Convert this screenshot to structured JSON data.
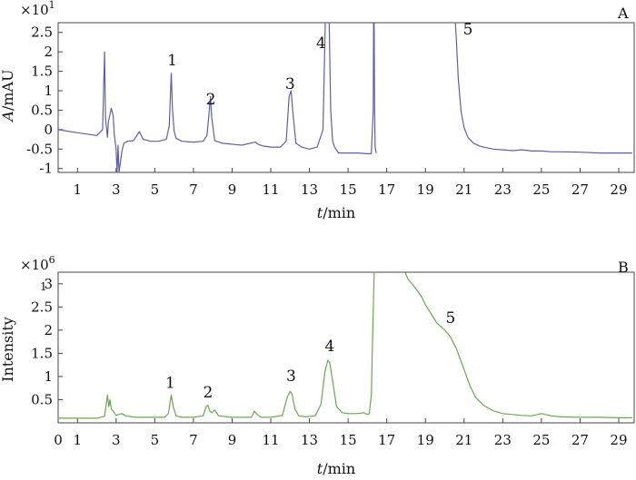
{
  "chart_data": [
    {
      "type": "line",
      "panel_label": "A",
      "scale_text": "×10",
      "scale_exp": "1",
      "xlabel_italic": "t",
      "xlabel_rest": "/min",
      "ylabel_italic": "A",
      "ylabel_rest": "/mAU",
      "xlim": [
        0,
        29.8
      ],
      "ylim": [
        -1.1,
        2.75
      ],
      "x_ticks": [
        1,
        3,
        5,
        7,
        9,
        11,
        13,
        15,
        17,
        19,
        21,
        23,
        25,
        27,
        29
      ],
      "x_tick_labels": [
        "1",
        "3",
        "5",
        "7",
        "9",
        "11",
        "13",
        "15",
        "17",
        "19",
        "21",
        "23",
        "25",
        "27",
        "29"
      ],
      "y_ticks": [
        2.5,
        2,
        1.5,
        1,
        0.5,
        0,
        -0.5,
        -1
      ],
      "y_tick_labels": [
        "2.5",
        "2",
        "1.5",
        "1",
        "0.5",
        "0",
        "-0.5",
        "-1"
      ],
      "line_color": "#5f5fa8",
      "peak_labels": [
        {
          "text": "1",
          "x": 5.9,
          "y": 1.65
        },
        {
          "text": "2",
          "x": 7.9,
          "y": 0.65
        },
        {
          "text": "3",
          "x": 12.0,
          "y": 1.05
        },
        {
          "text": "4",
          "x": 13.6,
          "y": 2.1
        },
        {
          "text": "5",
          "x": 21.2,
          "y": 2.45
        }
      ],
      "series": [
        {
          "x": [
            0,
            1,
            2,
            2.3,
            2.4,
            2.45,
            2.55,
            2.6,
            2.75,
            2.85,
            2.9,
            3.0,
            3.05,
            3.1,
            3.15,
            3.3,
            3.4,
            3.6,
            3.9,
            4.2,
            4.3,
            4.4,
            4.8,
            5.2,
            5.6,
            5.75,
            5.85,
            5.92,
            6.0,
            6.1,
            6.4,
            7.0,
            7.5,
            7.7,
            7.82,
            7.88,
            7.95,
            8.1,
            8.5,
            9.5,
            10.2,
            10.35,
            10.6,
            11.0,
            11.5,
            11.8,
            11.95,
            12.05,
            12.15,
            12.3,
            12.6,
            13.0,
            13.4,
            13.7,
            13.82,
            13.88,
            13.92,
            14.02,
            14.1,
            14.2,
            14.3,
            14.5,
            15.0,
            15.5,
            16.0,
            16.2,
            16.3,
            16.32,
            16.35,
            16.37,
            16.4,
            16.45
          ],
          "y": [
            0.0,
            -0.08,
            -0.15,
            0.0,
            2.0,
            0.3,
            -0.2,
            0.2,
            0.55,
            0.35,
            -0.1,
            -0.5,
            -1.1,
            -0.4,
            -1.1,
            -0.55,
            -0.35,
            -0.3,
            -0.28,
            -0.05,
            -0.15,
            -0.25,
            -0.3,
            -0.3,
            -0.25,
            0.1,
            1.45,
            0.5,
            -0.05,
            -0.22,
            -0.3,
            -0.32,
            -0.3,
            -0.15,
            0.5,
            0.85,
            0.3,
            -0.28,
            -0.35,
            -0.4,
            -0.32,
            -0.38,
            -0.42,
            -0.45,
            -0.45,
            -0.3,
            0.85,
            1.0,
            0.4,
            -0.35,
            -0.45,
            -0.5,
            -0.45,
            0.0,
            2.75,
            2.75,
            2.75,
            2.75,
            0.5,
            -0.3,
            -0.45,
            -0.6,
            -0.6,
            -0.6,
            -0.62,
            -0.62,
            0.5,
            2.75,
            2.75,
            0.5,
            -0.45,
            -0.6
          ]
        },
        {
          "x": [
            20.55,
            20.6,
            20.7,
            20.85,
            21.0,
            21.2,
            21.5,
            21.8,
            22.0,
            22.5,
            23.0,
            23.5,
            24.0,
            24.5,
            25.0,
            25.5,
            26.0,
            27.0,
            28.0,
            29.0,
            29.7
          ],
          "y": [
            2.75,
            2.3,
            1.3,
            0.45,
            0.05,
            -0.2,
            -0.35,
            -0.42,
            -0.45,
            -0.5,
            -0.52,
            -0.54,
            -0.52,
            -0.55,
            -0.55,
            -0.57,
            -0.57,
            -0.58,
            -0.6,
            -0.6,
            -0.6
          ]
        }
      ]
    },
    {
      "type": "line",
      "panel_label": "B",
      "scale_text": "×10",
      "scale_exp": "6",
      "stray_label": "1",
      "xlabel_italic": "t",
      "xlabel_rest": "/min",
      "ylabel": "Intensity",
      "xlim": [
        0,
        29.8
      ],
      "ylim": [
        0,
        3.25
      ],
      "x_ticks": [
        0,
        1,
        3,
        5,
        7,
        9,
        11,
        13,
        15,
        17,
        19,
        21,
        23,
        25,
        27,
        29
      ],
      "x_tick_labels": [
        "0",
        "1",
        "3",
        "5",
        "7",
        "9",
        "11",
        "13",
        "15",
        "17",
        "19",
        "21",
        "23",
        "25",
        "27",
        "29"
      ],
      "y_ticks": [
        3,
        2.5,
        2,
        1.5,
        1,
        0.5
      ],
      "y_tick_labels": [
        "3",
        "2.5",
        "2",
        "1.5",
        "1",
        "0.5"
      ],
      "line_color": "#6aa84f",
      "peak_labels": [
        {
          "text": "1",
          "x": 5.8,
          "y": 0.75
        },
        {
          "text": "2",
          "x": 7.75,
          "y": 0.55
        },
        {
          "text": "3",
          "x": 12.05,
          "y": 0.9
        },
        {
          "text": "4",
          "x": 14.05,
          "y": 1.55
        },
        {
          "text": "5",
          "x": 20.3,
          "y": 2.15
        }
      ],
      "series": [
        {
          "x": [
            0,
            1,
            2,
            2.4,
            2.55,
            2.62,
            2.68,
            2.75,
            2.85,
            3.0,
            3.3,
            3.5,
            4.0,
            5.0,
            5.5,
            5.7,
            5.85,
            5.95,
            6.1,
            6.4,
            7.0,
            7.5,
            7.65,
            7.75,
            7.85,
            7.95,
            8.1,
            8.3,
            9.0,
            10.0,
            10.15,
            10.3,
            10.5,
            11.0,
            11.6,
            11.85,
            12.0,
            12.1,
            12.25,
            12.45,
            12.8,
            13.3,
            13.6,
            13.8,
            13.95,
            14.05,
            14.2,
            14.4,
            14.7,
            15.0,
            15.5,
            15.8,
            16.0,
            16.1,
            16.2,
            16.25,
            16.3,
            16.35,
            16.4
          ],
          "y": [
            0.1,
            0.1,
            0.1,
            0.14,
            0.6,
            0.35,
            0.5,
            0.3,
            0.25,
            0.16,
            0.2,
            0.15,
            0.12,
            0.12,
            0.12,
            0.2,
            0.6,
            0.35,
            0.15,
            0.12,
            0.12,
            0.15,
            0.35,
            0.38,
            0.25,
            0.22,
            0.28,
            0.15,
            0.12,
            0.12,
            0.25,
            0.18,
            0.12,
            0.12,
            0.16,
            0.55,
            0.68,
            0.62,
            0.3,
            0.15,
            0.13,
            0.15,
            0.4,
            1.1,
            1.35,
            1.3,
            0.9,
            0.35,
            0.22,
            0.2,
            0.2,
            0.22,
            0.18,
            0.2,
            0.6,
            1.5,
            2.4,
            3.25,
            3.25
          ]
        },
        {
          "x": [
            17.95,
            18.1,
            18.5,
            18.8,
            19.0,
            19.3,
            19.6,
            20.0,
            20.3,
            20.6,
            21.0,
            21.3,
            21.6,
            22.0,
            22.5,
            23.0,
            23.5,
            24.0,
            24.5,
            25.0,
            25.5,
            26.0,
            27.0,
            28.0,
            29.0,
            29.7
          ],
          "y": [
            3.25,
            3.1,
            2.9,
            2.72,
            2.55,
            2.35,
            2.15,
            2.0,
            1.85,
            1.6,
            1.15,
            0.8,
            0.55,
            0.38,
            0.26,
            0.2,
            0.18,
            0.16,
            0.15,
            0.2,
            0.15,
            0.13,
            0.12,
            0.12,
            0.11,
            0.11
          ]
        }
      ]
    }
  ]
}
